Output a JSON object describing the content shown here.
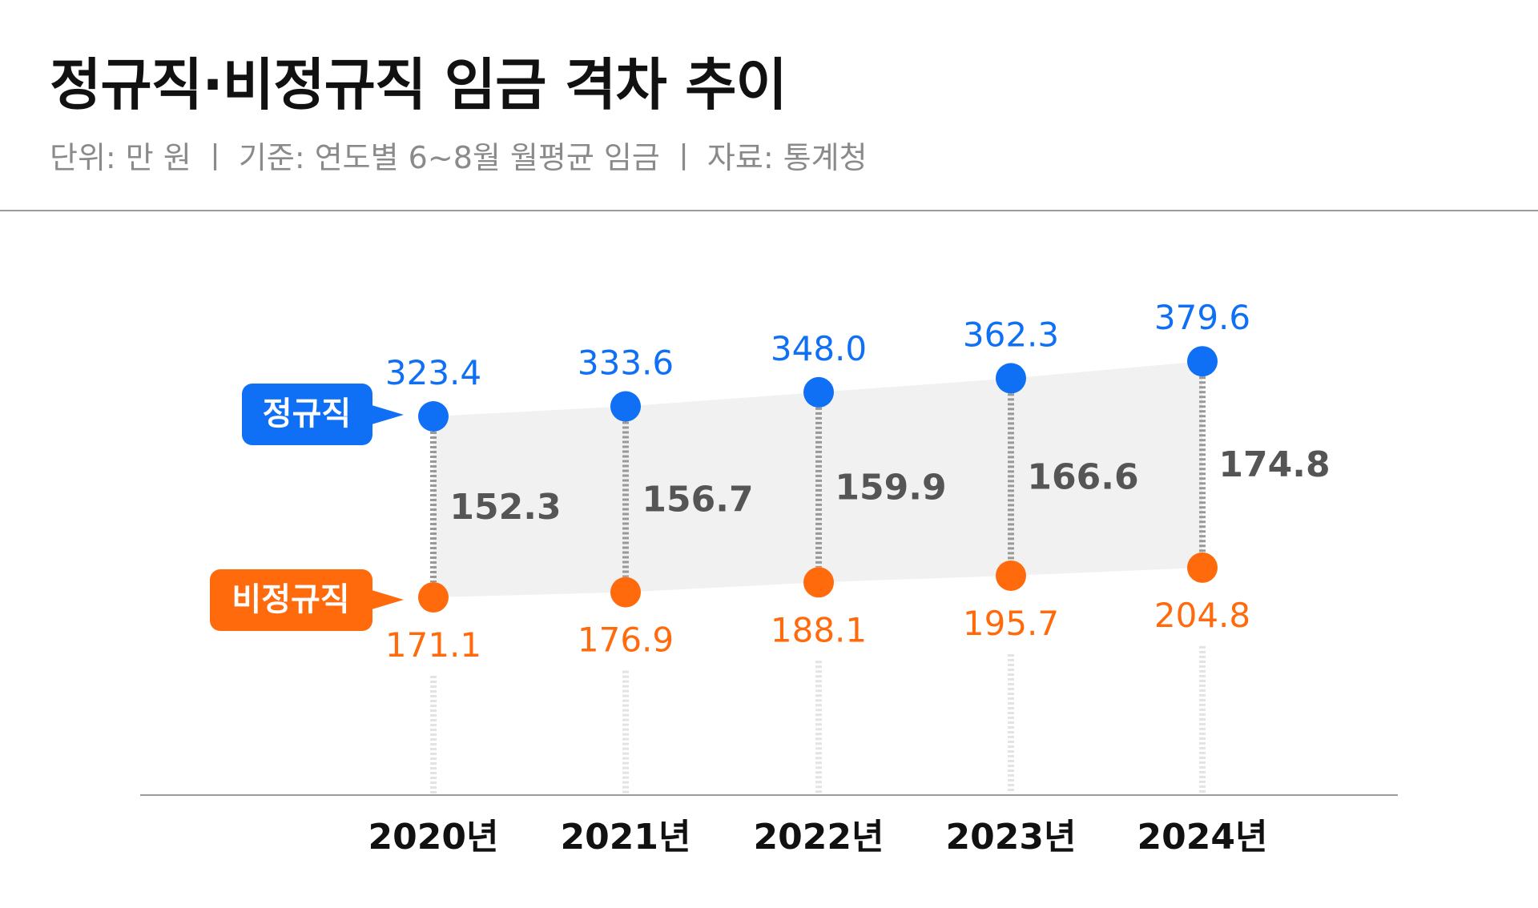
{
  "header": {
    "title": "정규직·비정규직 임금 격차 추이",
    "subtitle": "단위: 만 원  ㅣ 기준: 연도별 6~8월 월평균 임금 ㅣ 자료: 통계청"
  },
  "colors": {
    "regular": "#0f6ff5",
    "irregular": "#ff6a0d",
    "gap_text": "#555555",
    "band": "#f1f1f1",
    "connector": "#999999",
    "guide": "#e3e3e3",
    "axis": "#9a9a9a",
    "year_text": "#111111"
  },
  "chart_data": {
    "type": "line",
    "title": "정규직·비정규직 임금 격차 추이",
    "unit": "만 원",
    "categories": [
      "2020년",
      "2021년",
      "2022년",
      "2023년",
      "2024년"
    ],
    "series": [
      {
        "name": "정규직",
        "values": [
          323.4,
          333.6,
          348.0,
          362.3,
          379.6
        ]
      },
      {
        "name": "비정규직",
        "values": [
          171.1,
          176.9,
          188.1,
          195.7,
          204.8
        ]
      }
    ],
    "gap": [
      152.3,
      156.7,
      159.9,
      166.6,
      174.8
    ],
    "gap_labels": [
      "152.3",
      "156.7",
      "159.9",
      "166.6",
      "174.8"
    ],
    "regular_labels": [
      "323.4",
      "333.6",
      "348.0",
      "362.3",
      "379.6"
    ],
    "irregular_labels": [
      "171.1",
      "176.9",
      "188.1",
      "195.7",
      "204.8"
    ],
    "legend": [
      "정규직",
      "비정규직"
    ],
    "legend_position": "left"
  }
}
